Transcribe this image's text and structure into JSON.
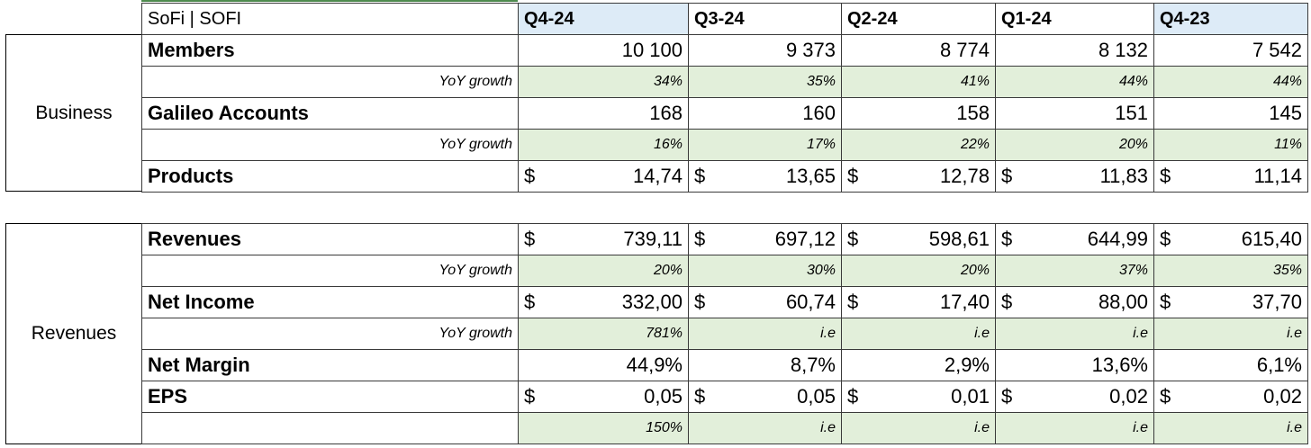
{
  "sheet": {
    "title": "SoFi | SOFI",
    "quarters": [
      "Q4-24",
      "Q3-24",
      "Q2-24",
      "Q1-24",
      "Q4-23"
    ]
  },
  "business": {
    "group_label": "Business",
    "rows": [
      {
        "label": "Members",
        "type": "num",
        "values": [
          "10 100",
          "9 373",
          "8 774",
          "8 132",
          "7 542"
        ]
      },
      {
        "label": "YoY growth",
        "type": "sub",
        "values": [
          "34%",
          "35%",
          "41%",
          "44%",
          "44%"
        ]
      },
      {
        "label": "Galileo Accounts",
        "type": "num",
        "values": [
          "168",
          "160",
          "158",
          "151",
          "145"
        ]
      },
      {
        "label": "YoY growth",
        "type": "sub",
        "values": [
          "16%",
          "17%",
          "22%",
          "20%",
          "11%"
        ]
      },
      {
        "label": "Products",
        "type": "cur",
        "currency": "$",
        "values": [
          "14,74",
          "13,65",
          "12,78",
          "11,83",
          "11,14"
        ]
      }
    ]
  },
  "revenues": {
    "group_label": "Revenues",
    "rows": [
      {
        "label": "Revenues",
        "type": "cur",
        "currency": "$",
        "values": [
          "739,11",
          "697,12",
          "598,61",
          "644,99",
          "615,40"
        ]
      },
      {
        "label": "YoY growth",
        "type": "sub",
        "values": [
          "20%",
          "30%",
          "20%",
          "37%",
          "35%"
        ]
      },
      {
        "label": "Net Income",
        "type": "cur",
        "currency": "$",
        "values": [
          "332,00",
          "60,74",
          "17,40",
          "88,00",
          "37,70"
        ]
      },
      {
        "label": "YoY growth",
        "type": "sub",
        "values": [
          "781%",
          "i.e",
          "i.e",
          "i.e",
          "i.e"
        ]
      },
      {
        "label": "Net Margin",
        "type": "num",
        "values": [
          "44,9%",
          "8,7%",
          "2,9%",
          "13,6%",
          "6,1%"
        ]
      },
      {
        "label": "EPS",
        "type": "cur",
        "currency": "$",
        "values": [
          "0,05",
          "0,05",
          "0,01",
          "0,02",
          "0,02"
        ]
      },
      {
        "label": "",
        "type": "sub",
        "values": [
          "150%",
          "i.e",
          "i.e",
          "i.e",
          "i.e"
        ]
      }
    ]
  },
  "colors": {
    "header_highlight": "#ddebf7",
    "growth_fill": "#e2efda"
  }
}
